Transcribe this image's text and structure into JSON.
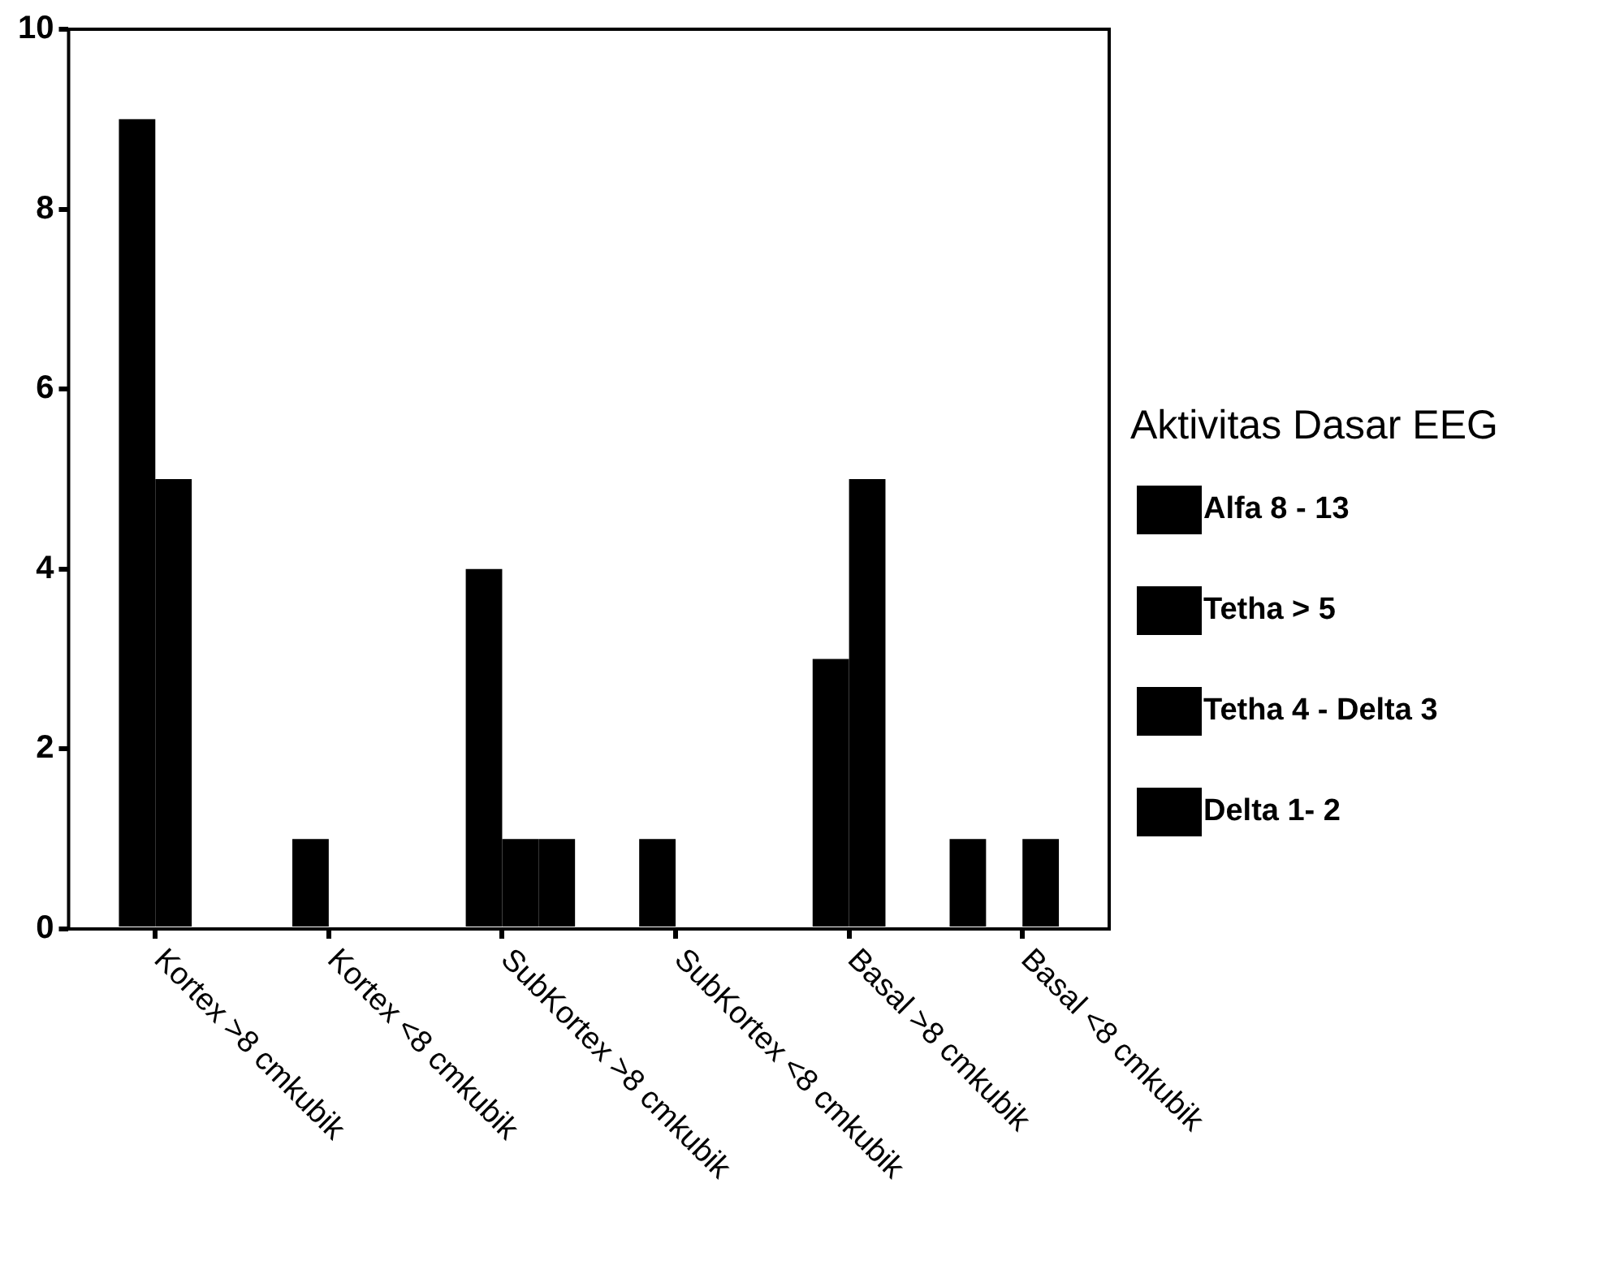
{
  "chart_data": {
    "type": "bar",
    "legend_title": "Aktivitas Dasar EEG",
    "categories": [
      "Kortex >8 cmkubik",
      "Kortex <8 cmkubik",
      "SubKortex >8 cmkubik",
      "SubKortex <8 cmkubik",
      "Basal >8 cmkubik",
      "Basal <8 cmkubik"
    ],
    "series": [
      {
        "name": "Alfa 8 - 13",
        "color": "#000000",
        "values": [
          0,
          0,
          0,
          0,
          0,
          1
        ]
      },
      {
        "name": "Tetha > 5",
        "color": "#000000",
        "values": [
          9,
          1,
          4,
          1,
          3,
          0
        ]
      },
      {
        "name": "Tetha 4 - Delta 3",
        "color": "#000000",
        "values": [
          5,
          0,
          1,
          0,
          5,
          1
        ]
      },
      {
        "name": "Delta 1- 2",
        "color": "#000000",
        "values": [
          0,
          0,
          1,
          0,
          0,
          0
        ]
      }
    ],
    "ylim": [
      0,
      10
    ],
    "yticks": [
      0,
      2,
      4,
      6,
      8,
      10
    ],
    "grid": false,
    "legend": "right"
  }
}
